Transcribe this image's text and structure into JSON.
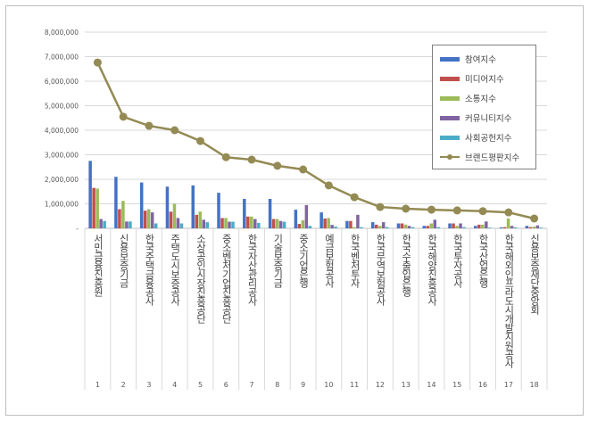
{
  "chart_data": {
    "type": "bar",
    "title": "",
    "xlabel": "",
    "ylabel": "",
    "ylim": [
      0,
      8000000
    ],
    "yticks": [
      "-",
      "1,000,000",
      "2,000,000",
      "3,000,000",
      "4,000,000",
      "5,000,000",
      "6,000,000",
      "7,000,000",
      "8,000,000"
    ],
    "grid": true,
    "legend_position": "top-right",
    "ranks": [
      "1",
      "2",
      "3",
      "4",
      "5",
      "6",
      "7",
      "8",
      "9",
      "10",
      "11",
      "12",
      "13",
      "14",
      "15",
      "16",
      "17",
      "18"
    ],
    "categories": [
      "서민금융진흥원",
      "신용보증기금",
      "한국주택금융공사",
      "주택도시보증공사",
      "소상공인시장진흥공단",
      "중소벤처기업진흥공단",
      "한국자산관리공사",
      "기술보증기금",
      "중소기업은행",
      "예금보험공사",
      "한국벤처투자",
      "한국무역보험공사",
      "한국수출입은행",
      "한국해양진흥공사",
      "한국투자공사",
      "한국산업은행",
      "한국해외인프라도시개발지원공사",
      "신용보증재단중앙회"
    ],
    "series": [
      {
        "name": "참여지수",
        "color": "#4472c4",
        "values": [
          2750000,
          2100000,
          1870000,
          1700000,
          1750000,
          1450000,
          1200000,
          1200000,
          760000,
          650000,
          300000,
          250000,
          200000,
          100000,
          200000,
          100000,
          40000,
          100000
        ]
      },
      {
        "name": "미디어지수",
        "color": "#c0504d",
        "values": [
          1650000,
          780000,
          720000,
          680000,
          550000,
          420000,
          480000,
          380000,
          180000,
          400000,
          300000,
          150000,
          200000,
          100000,
          200000,
          150000,
          50000,
          50000
        ]
      },
      {
        "name": "소통지수",
        "color": "#9bbb59",
        "values": [
          1620000,
          1120000,
          780000,
          1000000,
          680000,
          420000,
          480000,
          380000,
          330000,
          420000,
          50000,
          100000,
          150000,
          200000,
          100000,
          150000,
          400000,
          70000
        ]
      },
      {
        "name": "커뮤니티지수",
        "color": "#8064a2",
        "values": [
          380000,
          280000,
          650000,
          420000,
          350000,
          270000,
          380000,
          300000,
          950000,
          140000,
          550000,
          250000,
          100000,
          350000,
          200000,
          280000,
          100000,
          120000
        ]
      },
      {
        "name": "사회공헌지수",
        "color": "#4bacc6",
        "values": [
          300000,
          280000,
          200000,
          200000,
          250000,
          270000,
          220000,
          270000,
          100000,
          70000,
          50000,
          50000,
          50000,
          50000,
          50000,
          30000,
          40000,
          30000
        ]
      },
      {
        "name": "브랜드평판지수",
        "color": "#948a54",
        "type": "line",
        "values": [
          6760000,
          4550000,
          4180000,
          4000000,
          3560000,
          2900000,
          2800000,
          2550000,
          2400000,
          1750000,
          1270000,
          870000,
          800000,
          760000,
          730000,
          700000,
          650000,
          400000
        ]
      }
    ]
  }
}
